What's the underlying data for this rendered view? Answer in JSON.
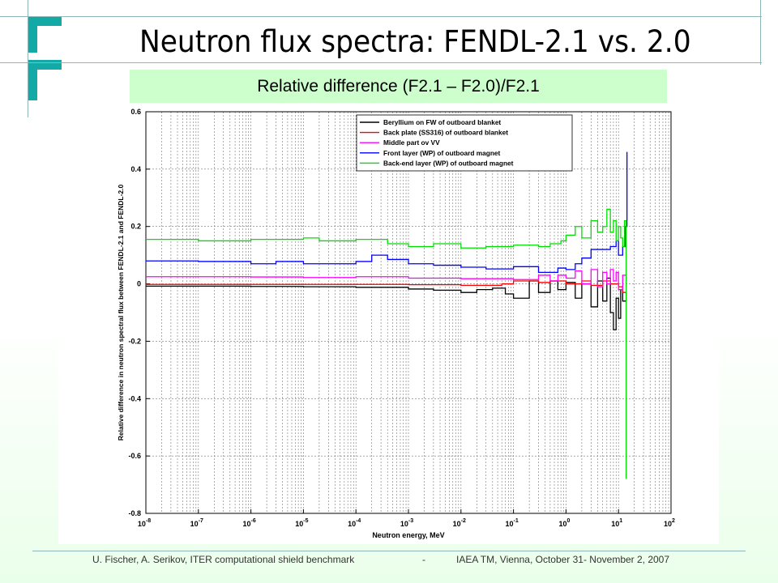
{
  "slide": {
    "title": "Neutron flux spectra: FENDL-2.1 vs. 2.0",
    "subtitle": "Relative difference (F2.1 – F2.0)/F2.1",
    "footer_left": "U. Fischer, A. Serikov, ITER computational shield benchmark",
    "footer_sep": "-",
    "footer_right": "IAEA TM, Vienna, October 31- November 2, 2007"
  },
  "colors": {
    "accent": "#13a9a6",
    "subtitle_bg": "#ccffcc"
  },
  "chart_data": {
    "type": "line",
    "title": "",
    "xlabel": "Neutron energy, MeV",
    "ylabel": "Relative difference in neutron spectral flux between FENDL-2.1 and FENDL-2.0",
    "x_scale": "log",
    "xlim": [
      1e-08,
      100
    ],
    "ylim": [
      -0.8,
      0.6
    ],
    "x_ticks": [
      {
        "value": 1e-08,
        "base": "10",
        "exp": "-8"
      },
      {
        "value": 1e-07,
        "base": "10",
        "exp": "-7"
      },
      {
        "value": 1e-06,
        "base": "10",
        "exp": "-6"
      },
      {
        "value": 1e-05,
        "base": "10",
        "exp": "-5"
      },
      {
        "value": 0.0001,
        "base": "10",
        "exp": "-4"
      },
      {
        "value": 0.001,
        "base": "10",
        "exp": "-3"
      },
      {
        "value": 0.01,
        "base": "10",
        "exp": "-2"
      },
      {
        "value": 0.1,
        "base": "10",
        "exp": "-1"
      },
      {
        "value": 1,
        "base": "10",
        "exp": "0"
      },
      {
        "value": 10,
        "base": "10",
        "exp": "1"
      },
      {
        "value": 100,
        "base": "10",
        "exp": "2"
      }
    ],
    "y_ticks": [
      {
        "value": 0.6,
        "label": "0.6"
      },
      {
        "value": 0.4,
        "label": "0.4"
      },
      {
        "value": 0.2,
        "label": "0.2"
      },
      {
        "value": 0,
        "label": "0"
      },
      {
        "value": -0.2,
        "label": "-0.2"
      },
      {
        "value": -0.4,
        "label": "-0.4"
      },
      {
        "value": -0.6,
        "label": "-0.6"
      },
      {
        "value": -0.8,
        "label": "-0.8"
      }
    ],
    "grid": true,
    "legend_position": "top-right",
    "series": [
      {
        "name": "Beryllium on FW of outboard blanket",
        "color": "#000000",
        "step": true,
        "points": [
          [
            1e-08,
            -0.008
          ],
          [
            1e-07,
            -0.008
          ],
          [
            1e-06,
            -0.009
          ],
          [
            1e-05,
            -0.01
          ],
          [
            0.0001,
            -0.012
          ],
          [
            0.001,
            -0.018
          ],
          [
            0.003,
            -0.022
          ],
          [
            0.01,
            -0.03
          ],
          [
            0.02,
            -0.02
          ],
          [
            0.04,
            -0.015
          ],
          [
            0.07,
            -0.035
          ],
          [
            0.1,
            -0.05
          ],
          [
            0.2,
            0.01
          ],
          [
            0.3,
            -0.03
          ],
          [
            0.5,
            0.01
          ],
          [
            0.7,
            -0.02
          ],
          [
            1,
            0.005
          ],
          [
            1.5,
            -0.05
          ],
          [
            2,
            0.0
          ],
          [
            3,
            -0.08
          ],
          [
            4,
            0.01
          ],
          [
            5,
            -0.06
          ],
          [
            6,
            0.02
          ],
          [
            7,
            -0.1
          ],
          [
            8,
            -0.16
          ],
          [
            9,
            -0.05
          ],
          [
            10,
            -0.12
          ],
          [
            11,
            -0.02
          ],
          [
            12,
            -0.06
          ],
          [
            14,
            -0.03
          ]
        ]
      },
      {
        "name": "Back plate (SS316) of outboard blanket",
        "color": "#ff0000",
        "step": true,
        "points": [
          [
            1e-08,
            -0.002
          ],
          [
            1e-06,
            -0.002
          ],
          [
            0.0001,
            -0.002
          ],
          [
            0.001,
            -0.003
          ],
          [
            0.01,
            -0.005
          ],
          [
            0.03,
            -0.005
          ],
          [
            0.06,
            0.0
          ],
          [
            0.1,
            0.01
          ],
          [
            0.3,
            0.005
          ],
          [
            0.5,
            0.01
          ],
          [
            1,
            0.0
          ],
          [
            2,
            0.01
          ],
          [
            3,
            -0.005
          ],
          [
            5,
            0.01
          ],
          [
            7,
            0.0
          ],
          [
            10,
            -0.01
          ],
          [
            12,
            -0.03
          ],
          [
            14,
            -0.06
          ]
        ]
      },
      {
        "name": "Middle part ov VV",
        "color": "#ff00ff",
        "step": true,
        "points": [
          [
            1e-08,
            0.025
          ],
          [
            1e-06,
            0.024
          ],
          [
            1e-05,
            0.022
          ],
          [
            0.0001,
            0.025
          ],
          [
            0.001,
            0.02
          ],
          [
            0.01,
            0.018
          ],
          [
            0.1,
            0.015
          ],
          [
            0.3,
            0.03
          ],
          [
            0.5,
            0.01
          ],
          [
            0.7,
            0.03
          ],
          [
            1,
            0.02
          ],
          [
            1.5,
            0.045
          ],
          [
            2,
            0.0
          ],
          [
            3,
            0.05
          ],
          [
            4,
            -0.01
          ],
          [
            5,
            0.04
          ],
          [
            6,
            0.0
          ],
          [
            7,
            0.05
          ],
          [
            8,
            0.01
          ],
          [
            9,
            0.04
          ],
          [
            10,
            -0.02
          ],
          [
            12,
            0.03
          ],
          [
            14,
            0.01
          ]
        ]
      },
      {
        "name": "Front layer (WP) of outboard magnet",
        "color": "#0000ff",
        "step": true,
        "points": [
          [
            1e-08,
            0.08
          ],
          [
            1e-07,
            0.078
          ],
          [
            1e-06,
            0.07
          ],
          [
            3e-06,
            0.078
          ],
          [
            1e-05,
            0.07
          ],
          [
            0.0001,
            0.078
          ],
          [
            0.0002,
            0.1
          ],
          [
            0.0004,
            0.085
          ],
          [
            0.001,
            0.07
          ],
          [
            0.003,
            0.065
          ],
          [
            0.01,
            0.058
          ],
          [
            0.03,
            0.052
          ],
          [
            0.1,
            0.06
          ],
          [
            0.3,
            0.04
          ],
          [
            0.7,
            0.055
          ],
          [
            1,
            0.05
          ],
          [
            1.5,
            0.07
          ],
          [
            2,
            0.09
          ],
          [
            3,
            0.12
          ],
          [
            5,
            0.12
          ],
          [
            7,
            0.13
          ],
          [
            9,
            0.15
          ],
          [
            10,
            0.1
          ],
          [
            12,
            0.13
          ],
          [
            13.5,
            0.2
          ],
          [
            14.5,
            0.46
          ]
        ]
      },
      {
        "name": "Back-end layer (WP) of outboard magnet",
        "color": "#00dd00",
        "step": true,
        "points": [
          [
            1e-08,
            0.155
          ],
          [
            1e-07,
            0.15
          ],
          [
            1e-06,
            0.155
          ],
          [
            1e-05,
            0.16
          ],
          [
            2e-05,
            0.15
          ],
          [
            0.0001,
            0.155
          ],
          [
            0.0004,
            0.14
          ],
          [
            0.001,
            0.13
          ],
          [
            0.003,
            0.14
          ],
          [
            0.01,
            0.125
          ],
          [
            0.03,
            0.13
          ],
          [
            0.1,
            0.135
          ],
          [
            0.3,
            0.13
          ],
          [
            0.5,
            0.14
          ],
          [
            0.8,
            0.15
          ],
          [
            1,
            0.17
          ],
          [
            1.5,
            0.2
          ],
          [
            2,
            0.16
          ],
          [
            3,
            0.22
          ],
          [
            4,
            0.18
          ],
          [
            5,
            0.2
          ],
          [
            6,
            0.26
          ],
          [
            7,
            0.18
          ],
          [
            8,
            0.22
          ],
          [
            9,
            0.15
          ],
          [
            10,
            0.2
          ],
          [
            11,
            0.16
          ],
          [
            12,
            0.13
          ],
          [
            13,
            0.22
          ],
          [
            14,
            -0.68
          ]
        ]
      }
    ]
  }
}
